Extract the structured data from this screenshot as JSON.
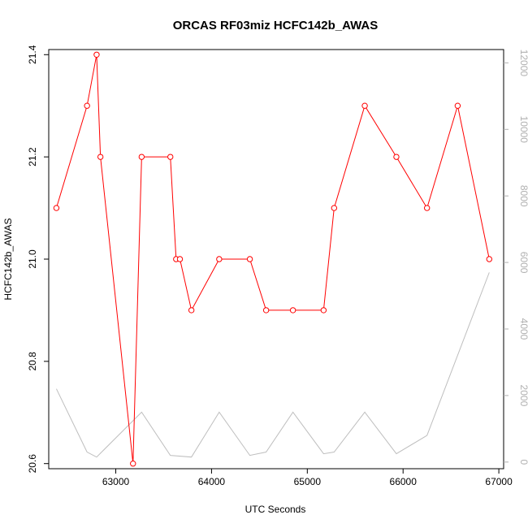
{
  "chart_data": {
    "type": "line",
    "title": "ORCAS RF03miz HCFC142b_AWAS",
    "xlabel": "UTC Seconds",
    "ylabel": "HCFC142b_AWAS",
    "xlim": [
      62300,
      67050
    ],
    "ylim": [
      20.59,
      21.41
    ],
    "y2lim": [
      -200,
      12400
    ],
    "xticks": [
      63000,
      64000,
      65000,
      66000,
      67000
    ],
    "yticks": [
      20.6,
      20.8,
      21.0,
      21.2,
      21.4
    ],
    "y2ticks": [
      0,
      2000,
      4000,
      6000,
      8000,
      10000,
      12000
    ],
    "xtick_labels": [
      "63000",
      "64000",
      "65000",
      "66000",
      "67000"
    ],
    "ytick_labels": [
      "20.6",
      "20.8",
      "21.0",
      "21.2",
      "21.4"
    ],
    "y2tick_labels": [
      "0",
      "2000",
      "4000",
      "6000",
      "8000",
      "10000",
      "12000"
    ],
    "colors": {
      "primary": "#ff0000",
      "secondary": "#bebebe"
    },
    "series": [
      {
        "axis": "left",
        "style": "line+points",
        "x": [
          62380,
          62700,
          62800,
          62840,
          63180,
          63270,
          63570,
          63630,
          63670,
          63790,
          64080,
          64400,
          64570,
          64850,
          65170,
          65280,
          65600,
          65930,
          66250,
          66570,
          66900
        ],
        "values": [
          21.1,
          21.3,
          21.4,
          21.2,
          20.6,
          21.2,
          21.2,
          21.0,
          21.0,
          20.9,
          21.0,
          21.0,
          20.9,
          20.9,
          20.9,
          21.1,
          21.3,
          21.2,
          21.1,
          21.3,
          21.0
        ]
      },
      {
        "axis": "right",
        "style": "line",
        "x": [
          62380,
          62700,
          62800,
          63270,
          63570,
          63790,
          64080,
          64400,
          64570,
          64850,
          65170,
          65280,
          65600,
          65930,
          66250,
          66900
        ],
        "values": [
          2200,
          300,
          150,
          1500,
          200,
          150,
          1500,
          200,
          300,
          1500,
          250,
          300,
          1500,
          250,
          800,
          5700
        ]
      }
    ]
  }
}
